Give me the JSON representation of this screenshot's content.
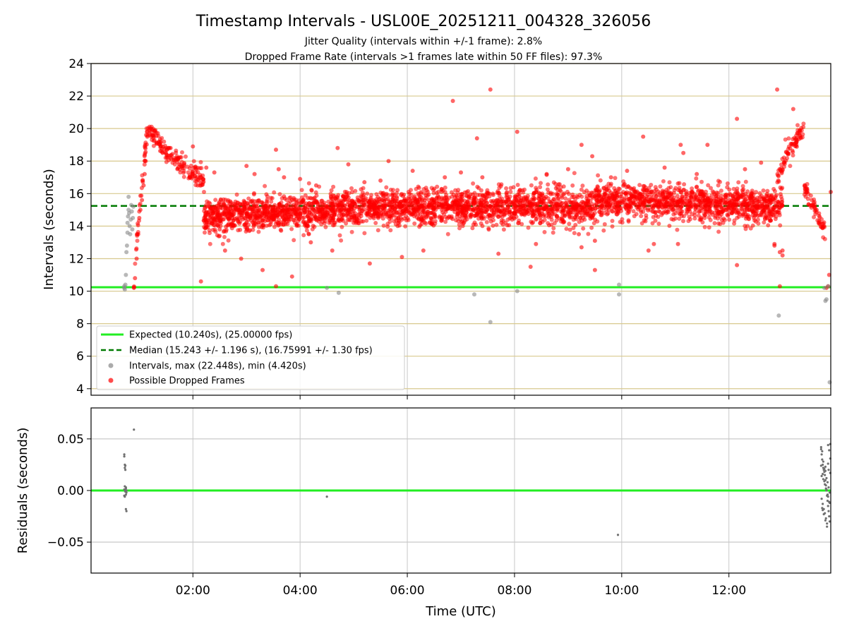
{
  "figure": {
    "title": "Timestamp Intervals - USL00E_20251211_004328_326056",
    "subtitle_1": "Jitter Quality (intervals within +/-1 frame): 2.8%",
    "subtitle_2": "Dropped Frame Rate (intervals >1 frames late within 50 FF files): 97.3%",
    "xlabel": "Time (UTC)"
  },
  "colors": {
    "expected_line": "#22ee22",
    "median_line": "#007a00",
    "intervals_points": "#888888",
    "dropped_points": "#ff0000",
    "hgrid_top": "#d8c98e",
    "grid": "#c8c8c8",
    "residual_points": "#707070"
  },
  "chart_data": [
    {
      "type": "scatter",
      "ylabel": "Intervals (seconds)",
      "x_unit": "hours UTC",
      "xlim": [
        0.1,
        13.9
      ],
      "ylim": [
        3.6,
        24
      ],
      "x_ticks": [
        2,
        4,
        6,
        8,
        10,
        12
      ],
      "x_tick_labels": [
        "02:00",
        "04:00",
        "06:00",
        "08:00",
        "10:00",
        "12:00"
      ],
      "y_ticks": [
        4,
        6,
        8,
        10,
        12,
        14,
        16,
        18,
        20,
        22,
        24
      ],
      "y_tick_labels": [
        "4",
        "6",
        "8",
        "10",
        "12",
        "14",
        "16",
        "18",
        "20",
        "22",
        "24"
      ],
      "grid": "both",
      "legend_position": "lower-left",
      "series": [
        {
          "name": "Expected (10.240s), (25.00000 fps)",
          "kind": "hline",
          "y": 10.24
        },
        {
          "name": "Median (15.243 +/- 1.196 s), (16.75991 +/- 1.30 fps)",
          "kind": "hline-dashed",
          "y": 15.243
        },
        {
          "name": "Intervals, max (22.448s), min (4.420s)",
          "kind": "points",
          "x": [
            0.72,
            0.72,
            0.73,
            0.74,
            0.75,
            0.76,
            0.77,
            0.78,
            0.78,
            0.79,
            0.8,
            0.8,
            0.81,
            0.82,
            0.83,
            0.84,
            0.85,
            0.86,
            0.87,
            0.88,
            0.89,
            4.5,
            4.72,
            7.25,
            7.55,
            8.05,
            9.95,
            9.95,
            12.93,
            13.78,
            13.8,
            13.82,
            13.85,
            13.88
          ],
          "y": [
            10.2,
            10.3,
            10.1,
            10.4,
            11.0,
            12.4,
            12.8,
            13.6,
            14.2,
            14.6,
            15.0,
            15.8,
            14.8,
            14.0,
            13.5,
            14.4,
            15.3,
            14.9,
            13.8,
            14.5,
            15.2,
            10.2,
            9.9,
            9.8,
            8.1,
            10.0,
            9.8,
            10.4,
            8.5,
            10.2,
            9.4,
            9.5,
            10.3,
            4.4
          ]
        },
        {
          "name": "Possible Dropped Frames",
          "kind": "points",
          "description_segments": [
            {
              "x_range": [
                0.9,
                1.15
              ],
              "y_range": [
                10.2,
                20.0
              ],
              "trend": "rising"
            },
            {
              "x_range": [
                1.15,
                1.5
              ],
              "y_range": [
                18.5,
                20.0
              ],
              "trend": "plateau"
            },
            {
              "x_range": [
                1.5,
                2.2
              ],
              "y_range": [
                16.8,
                18.5
              ],
              "trend": "falling"
            },
            {
              "x_range": [
                2.2,
                13.0
              ],
              "y_range": [
                13.2,
                17.2
              ],
              "center": 15.2
            },
            {
              "x_range": [
                12.9,
                13.4
              ],
              "y_range": [
                17.0,
                20.0
              ],
              "trend": "rising"
            },
            {
              "x_range": [
                13.4,
                13.8
              ],
              "y_range": [
                13.5,
                16.5
              ],
              "trend": "falling"
            }
          ],
          "x": [
            6.85,
            7.55,
            12.9,
            13.2,
            12.15,
            12.85,
            13.0,
            1.2,
            1.3,
            5.65,
            7.3,
            8.05,
            9.25,
            9.45,
            9.5,
            11.1,
            11.15,
            11.6,
            3.55,
            10.4,
            8.3,
            4.7,
            3.55,
            3.3,
            12.95,
            13.0,
            12.95,
            12.85,
            2.15,
            2.6,
            3.85,
            2.0,
            9.2,
            9.25,
            9.5,
            10.5,
            10.6,
            11.05,
            12.15,
            5.3,
            5.9,
            6.3,
            7.7,
            8.4,
            3.6,
            2.4,
            3.0,
            3.15,
            3.7,
            4.0,
            4.3,
            4.9,
            5.2,
            5.5,
            6.1,
            6.7,
            7.0,
            7.4,
            8.6,
            9.0,
            9.8,
            10.1,
            10.8,
            11.4,
            12.3,
            12.6,
            2.9,
            4.2,
            4.6,
            2.25,
            2.5
          ],
          "y": [
            21.7,
            22.4,
            22.4,
            21.2,
            20.6,
            12.8,
            12.5,
            20.0,
            19.9,
            18.0,
            19.4,
            19.8,
            19.0,
            18.3,
            11.3,
            19.0,
            18.5,
            19.0,
            10.3,
            19.5,
            11.5,
            18.8,
            18.7,
            11.3,
            12.4,
            12.2,
            10.3,
            12.9,
            10.6,
            12.5,
            10.9,
            18.9,
            13.5,
            12.7,
            13.1,
            12.5,
            12.9,
            12.9,
            11.6,
            11.7,
            12.1,
            12.5,
            12.3,
            12.9,
            17.5,
            17.3,
            17.7,
            17.2,
            17.0,
            16.9,
            16.5,
            17.8,
            16.7,
            16.8,
            17.4,
            17.0,
            17.3,
            17.0,
            17.2,
            17.5,
            17.0,
            17.4,
            17.6,
            17.2,
            17.5,
            17.9,
            12.0,
            13.0,
            12.5,
            17.6,
            13.8
          ],
          "x_edge": [
            0.9,
            0.92,
            0.95,
            0.98,
            1.0,
            1.02,
            1.05,
            1.08,
            1.1,
            1.12,
            1.15,
            13.82,
            13.85,
            13.87,
            13.9
          ],
          "y_edge": [
            10.2,
            10.8,
            12.0,
            13.5,
            14.5,
            15.0,
            15.6,
            16.5,
            17.2,
            18.0,
            19.5,
            10.2,
            10.3,
            11.0,
            16.1
          ]
        }
      ]
    },
    {
      "type": "scatter",
      "ylabel": "Residuals (seconds)",
      "xlabel": "Time (UTC)",
      "xlim": [
        0.1,
        13.9
      ],
      "ylim": [
        -0.08,
        0.08
      ],
      "x_ticks": [
        2,
        4,
        6,
        8,
        10,
        12
      ],
      "x_tick_labels": [
        "02:00",
        "04:00",
        "06:00",
        "08:00",
        "10:00",
        "12:00"
      ],
      "y_ticks": [
        0.05,
        0.0,
        -0.05
      ],
      "y_tick_labels": [
        "0.05",
        "0.00",
        "−0.05"
      ],
      "grid": "both",
      "series": [
        {
          "name": "",
          "kind": "hline",
          "y": 0.0
        },
        {
          "name": "",
          "kind": "points",
          "x": [
            0.72,
            0.72,
            0.73,
            0.73,
            0.74,
            0.74,
            0.75,
            0.75,
            0.76,
            0.76,
            0.72,
            0.73,
            0.74,
            0.75,
            0.76,
            0.72,
            0.73,
            0.75,
            0.74,
            0.9,
            4.5,
            9.93,
            13.72,
            13.73,
            13.74,
            13.75,
            13.76,
            13.77,
            13.78,
            13.79,
            13.8,
            13.81,
            13.82,
            13.83,
            13.84,
            13.85,
            13.86,
            13.87,
            13.88,
            13.89,
            13.72,
            13.74,
            13.76,
            13.78,
            13.8,
            13.82,
            13.84,
            13.86,
            13.88,
            13.73,
            13.75,
            13.77,
            13.79,
            13.81,
            13.83,
            13.85,
            13.87,
            13.89,
            13.72,
            13.75,
            13.78,
            13.81,
            13.84,
            13.87,
            13.74,
            13.77,
            13.8,
            13.83,
            13.86,
            13.89,
            13.73,
            13.76,
            13.79,
            13.82,
            13.85,
            13.88,
            13.75,
            13.8,
            13.85
          ],
          "y": [
            0.035,
            0.033,
            0.025,
            0.022,
            0.02,
            0.024,
            0.003,
            0.002,
            0.0,
            -0.002,
            -0.005,
            -0.006,
            -0.001,
            -0.018,
            -0.02,
            0.001,
            0.004,
            -0.004,
            0.0,
            0.059,
            -0.006,
            -0.043,
            0.04,
            0.035,
            0.03,
            0.025,
            0.022,
            0.02,
            0.018,
            0.015,
            0.01,
            0.005,
            0.0,
            -0.005,
            -0.01,
            -0.015,
            -0.02,
            -0.025,
            -0.03,
            0.045,
            0.042,
            0.038,
            0.028,
            0.021,
            0.019,
            0.012,
            0.008,
            0.003,
            -0.002,
            -0.008,
            -0.013,
            -0.018,
            -0.022,
            -0.027,
            -0.032,
            0.044,
            0.039,
            0.031,
            0.024,
            0.016,
            0.009,
            0.002,
            -0.004,
            -0.011,
            -0.017,
            -0.023,
            -0.029,
            -0.035,
            0.02,
            0.017,
            0.014,
            0.011,
            0.006,
            0.001,
            -0.006,
            -0.012,
            -0.019,
            0.023,
            0.026
          ]
        }
      ]
    }
  ]
}
